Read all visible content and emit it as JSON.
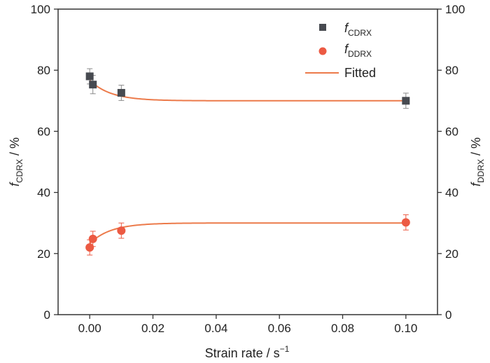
{
  "chart_data": {
    "type": "scatter",
    "title": "",
    "xlabel": {
      "main": "Strain rate / s",
      "sup": "−1"
    },
    "ylabel_left": {
      "f": "f",
      "sub": "CDRX",
      "rest": " / %"
    },
    "ylabel_right": {
      "f": "f",
      "sub": "DDRX",
      "rest": " / %"
    },
    "xlim": [
      -0.01,
      0.11
    ],
    "ylim": [
      0,
      100
    ],
    "xticks": [
      0.0,
      0.02,
      0.04,
      0.06,
      0.08,
      0.1
    ],
    "xtick_labels": [
      "0.00",
      "0.02",
      "0.04",
      "0.06",
      "0.08",
      "0.10"
    ],
    "yticks": [
      0,
      20,
      40,
      60,
      80,
      100
    ],
    "ytick_labels": [
      "0",
      "20",
      "40",
      "60",
      "80",
      "100"
    ],
    "grid": false,
    "legend_position": "top-right",
    "series": [
      {
        "name": {
          "f": "f",
          "sub": "CDRX"
        },
        "marker": "square",
        "color": "#474a50",
        "errcolor": "#8a8a8a",
        "x": [
          0.0,
          0.001,
          0.01,
          0.1
        ],
        "y": [
          78.0,
          75.3,
          72.6,
          70.0
        ],
        "err": [
          2.5,
          3.0,
          2.5,
          2.5
        ]
      },
      {
        "name": {
          "f": "f",
          "sub": "DDRX"
        },
        "marker": "circle",
        "color": "#ec5a43",
        "errcolor": "#ec5a43",
        "x": [
          0.0,
          0.001,
          0.01,
          0.1
        ],
        "y": [
          22.0,
          24.8,
          27.5,
          30.2
        ],
        "err": [
          2.5,
          2.5,
          2.5,
          2.5
        ]
      }
    ],
    "fits": [
      {
        "name": "Fitted",
        "color": "#ec7a4a",
        "y0": 76.7,
        "yinf": 70.0,
        "k": 150
      },
      {
        "name": "Fitted",
        "color": "#ec7a4a",
        "y0": 23.3,
        "yinf": 30.0,
        "k": 150
      }
    ],
    "legend_fit_label": "Fitted"
  }
}
